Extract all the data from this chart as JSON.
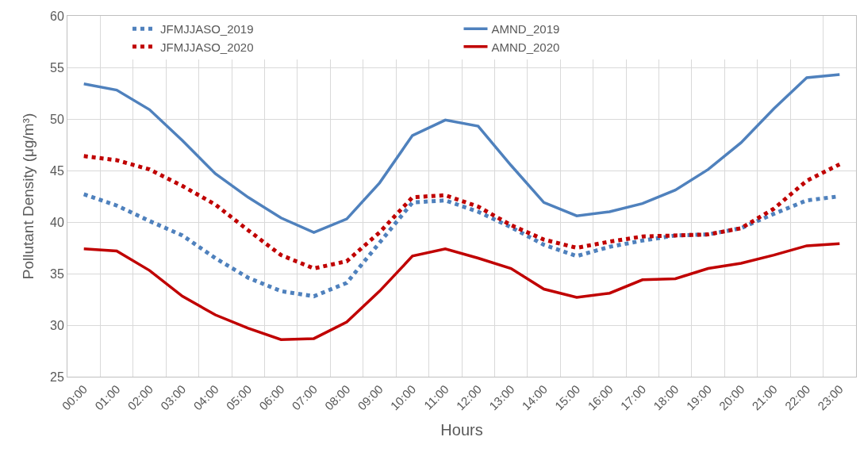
{
  "chart_data": {
    "type": "line",
    "xlabel": "Hours",
    "ylabel": "Pollutant Density (μg/m³)",
    "categories": [
      "00:00",
      "01:00",
      "02:00",
      "03:00",
      "04:00",
      "05:00",
      "06:00",
      "07:00",
      "08:00",
      "09:00",
      "10:00",
      "11:00",
      "12:00",
      "13:00",
      "14:00",
      "15:00",
      "16:00",
      "17:00",
      "18:00",
      "19:00",
      "20:00",
      "21:00",
      "22:00",
      "23:00"
    ],
    "series": [
      {
        "name": "JFMJJASO_2019",
        "color": "#4f81bd",
        "line_style": "dotted",
        "values": [
          42.7,
          41.6,
          40.1,
          38.7,
          36.5,
          34.6,
          33.3,
          32.8,
          34.1,
          38.0,
          41.9,
          42.1,
          41.0,
          39.5,
          37.8,
          36.7,
          37.6,
          38.2,
          38.7,
          38.8,
          39.4,
          40.8,
          42.1,
          42.5
        ]
      },
      {
        "name": "AMND_2019",
        "color": "#4f81bd",
        "line_style": "solid",
        "values": [
          53.4,
          52.8,
          50.9,
          47.9,
          44.7,
          42.4,
          40.4,
          39.0,
          40.3,
          43.8,
          48.4,
          49.9,
          49.3,
          45.5,
          41.9,
          40.6,
          41.0,
          41.8,
          43.1,
          45.1,
          47.7,
          51.0,
          54.0,
          54.3
        ]
      },
      {
        "name": "JFMJJASO_2020",
        "color": "#c00000",
        "line_style": "dotted",
        "values": [
          46.4,
          46.0,
          45.1,
          43.5,
          41.7,
          39.2,
          36.8,
          35.5,
          36.2,
          39.0,
          42.4,
          42.6,
          41.5,
          39.7,
          38.3,
          37.5,
          38.1,
          38.6,
          38.7,
          38.8,
          39.4,
          41.3,
          44.0,
          45.6
        ]
      },
      {
        "name": "AMND_2020",
        "color": "#c00000",
        "line_style": "solid",
        "values": [
          37.4,
          37.2,
          35.3,
          32.8,
          31.0,
          29.7,
          28.6,
          28.7,
          30.3,
          33.3,
          36.7,
          37.4,
          36.5,
          35.5,
          33.5,
          32.7,
          33.1,
          34.4,
          34.5,
          35.5,
          36.0,
          36.8,
          37.7,
          37.9
        ]
      }
    ],
    "ylim": [
      25,
      60
    ],
    "yticks": [
      25,
      30,
      35,
      40,
      45,
      50,
      55,
      60
    ],
    "grid": true,
    "legend": "top",
    "marker": "none"
  }
}
